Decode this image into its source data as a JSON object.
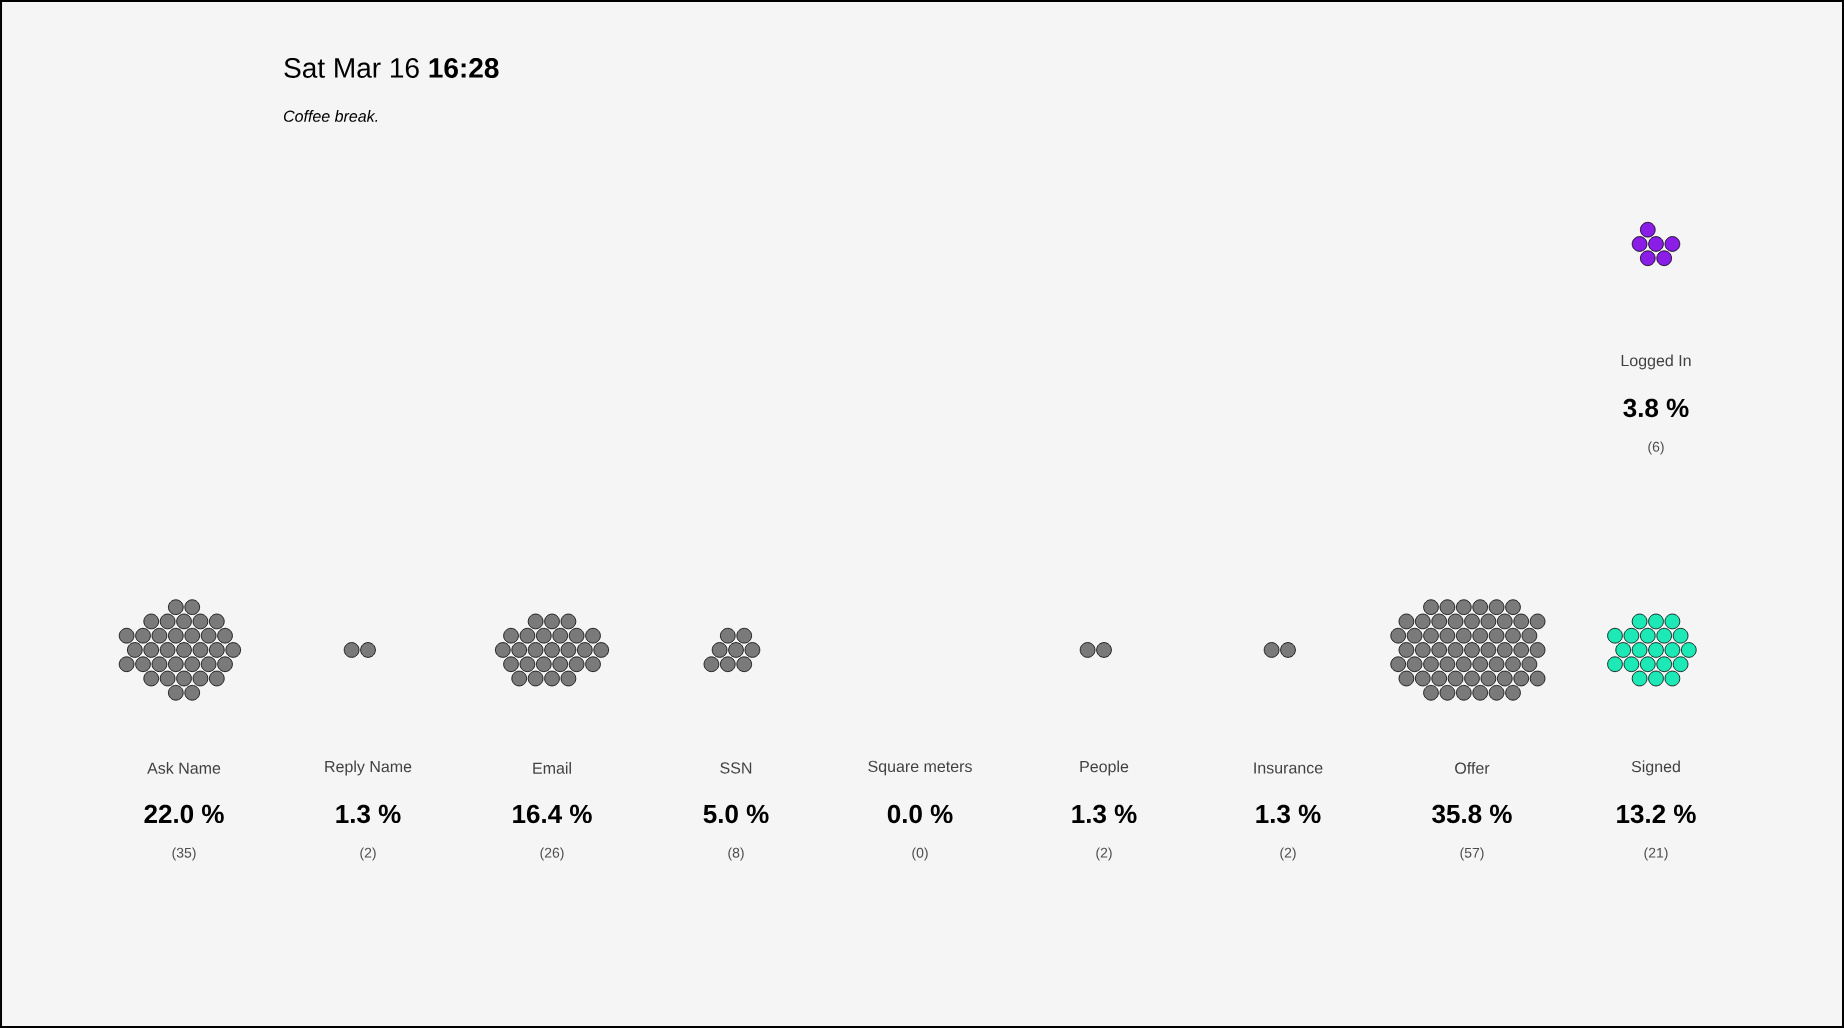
{
  "chart_data": {
    "type": "other",
    "title": "Sat Mar 16 **16:28**",
    "subtitle": "Coffee break.",
    "categories": [
      "Ask Name",
      "Reply Name",
      "Email",
      "SSN",
      "Square meters",
      "People",
      "Insurance",
      "Offer",
      "Signed",
      "Logged In"
    ],
    "series": [
      {
        "values": [
          22.0,
          1.3,
          16.4,
          5.0,
          0.0,
          1.3,
          1.3,
          35.8,
          13.2,
          3.8
        ],
        "value_labels": [
          "22.0 %",
          "1.3 %",
          "16.4 %",
          "5.0 %",
          "0.0 %",
          "1.3 %",
          "1.3 %",
          "35.8 %",
          "13.2 %",
          "3.8 %"
        ]
      },
      {
        "values": [
          35,
          2,
          26,
          8,
          0,
          2,
          2,
          57,
          21,
          6
        ],
        "value_labels": [
          "(35)",
          "(2)",
          "(26)",
          "(8)",
          "(0)",
          "(2)",
          "(2)",
          "(57)",
          "(21)",
          "(6)"
        ],
        "colors": [
          "#7a7a7a",
          "#7a7a7a",
          "#7a7a7a",
          "#7a7a7a",
          "#7a7a7a",
          "#7a7a7a",
          "#7a7a7a",
          "#7a7a7a",
          "#1de9b6",
          "#8a1ee6"
        ]
      }
    ]
  }
}
